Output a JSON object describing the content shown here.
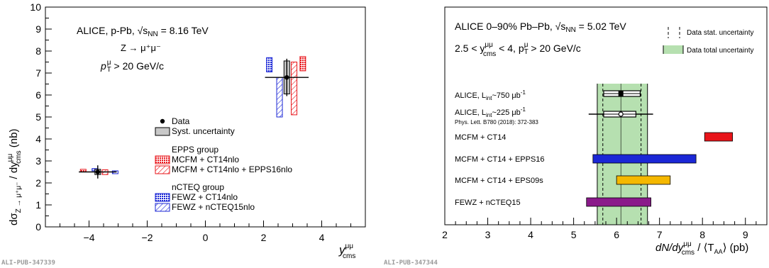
{
  "chart_data": [
    {
      "type": "scatter",
      "ylabel": "dσ_{Z→μ⁺μ⁻} / dy^{μμ}_{cms} (nb)",
      "ylabel_parts": {
        "a": "dσ",
        "sub": "Z → μ⁺μ⁻",
        "b": " / dy",
        "sup2": "μμ",
        "sub2": "cms",
        "c": " (nb)"
      },
      "xlabel_parts": {
        "y": "y",
        "sup": "μμ",
        "sub": "cms"
      },
      "xlim": [
        -5.5,
        5.5
      ],
      "ylim": [
        0,
        10
      ],
      "xticks": [
        -4,
        -2,
        0,
        2,
        4
      ],
      "xtick_labels": [
        "−4",
        "−2",
        "0",
        "2",
        "4"
      ],
      "yticks": [
        0,
        1,
        2,
        3,
        4,
        5,
        6,
        7,
        8,
        9,
        10
      ],
      "ytick_labels": [
        "0",
        "1",
        "2",
        "3",
        "4",
        "5",
        "6",
        "7",
        "8",
        "9",
        "10"
      ],
      "annotations": {
        "line1": "ALICE, p-Pb, √s",
        "line1_sub": "NN",
        "line1_end": " = 8.16 TeV",
        "line2": "Z → μ⁺μ⁻",
        "line3_a": "p",
        "line3_sub": "T",
        "line3_sup": "μ",
        "line3_b": " > 20 GeV/c"
      },
      "legend": {
        "data": "Data",
        "syst": "Syst. uncertainty",
        "epps_header": "EPPS group",
        "epps_1": "MCFM + CT14nlo",
        "epps_2": "MCFM + CT14nlo + EPPS16nlo",
        "ncteq_header": "nCTEQ group",
        "ncteq_1": "FEWZ + CT14nlo",
        "ncteq_2": "FEWZ + nCTEQ15nlo"
      },
      "data_points": [
        {
          "x": -3.7,
          "y": 2.5,
          "stat": 0.3,
          "xerr": 0.65,
          "syst": 0.12
        },
        {
          "x": 2.8,
          "y": 6.8,
          "stat": 0.85,
          "xerr": 0.75,
          "syst": 0.75
        }
      ],
      "model_boxes": [
        {
          "name": "MCFM + CT14nlo",
          "x": -4.2,
          "low": 2.5,
          "high": 2.62
        },
        {
          "name": "MCFM + CT14nlo + EPPS16nlo",
          "x": -3.45,
          "low": 2.38,
          "high": 2.6
        },
        {
          "name": "FEWZ + CT14nlo",
          "x": -3.8,
          "low": 2.55,
          "high": 2.65
        },
        {
          "name": "FEWZ + nCTEQ15nlo",
          "x": -3.1,
          "low": 2.42,
          "high": 2.55
        },
        {
          "name": "FEWZ + CT14nlo",
          "x": 2.2,
          "low": 7.05,
          "high": 7.7
        },
        {
          "name": "FEWZ + nCTEQ15nlo",
          "x": 2.55,
          "low": 5.0,
          "high": 6.8
        },
        {
          "name": "MCFM + CT14nlo + EPPS16nlo",
          "x": 3.05,
          "low": 5.1,
          "high": 7.5
        },
        {
          "name": "MCFM + CT14nlo",
          "x": 3.35,
          "low": 7.1,
          "high": 7.75
        }
      ],
      "footer": "ALI-PUB-347339"
    },
    {
      "type": "bar",
      "xlabel_parts": {
        "a": "dN/dy",
        "sup": "μμ",
        "sub": "cms",
        "b": " / ⟨T",
        "sub2": "AA",
        "c": "⟩ (pb)"
      },
      "xlim": [
        2,
        9.5
      ],
      "xticks": [
        2,
        3,
        4,
        5,
        6,
        7,
        8,
        9
      ],
      "xtick_labels": [
        "2",
        "3",
        "4",
        "5",
        "6",
        "7",
        "8",
        "9"
      ],
      "title_parts": {
        "a": "ALICE 0–90% Pb–Pb, √s",
        "sub": "NN",
        "b": " = 5.02 TeV"
      },
      "subtitle_parts": {
        "a": "2.5 < y",
        "sup": "μμ",
        "sub": "cms",
        "b": " < 4, p",
        "sub2": "T",
        "sup2": "μ",
        "c": " > 20 GeV/c"
      },
      "legend": {
        "stat": "Data stat. uncertainty",
        "total": "Data total uncertainty"
      },
      "data_band": {
        "low": 5.55,
        "high": 6.72,
        "stat_low": 5.68,
        "stat_high": 6.57,
        "center": 6.1
      },
      "measurements": [
        {
          "label_a": "ALICE, L",
          "label_sub": "int",
          "label_b": "~750 μb",
          "label_sup": "-1",
          "center": 6.1,
          "syst_low": 5.7,
          "syst_high": 6.55,
          "err_low": 5.8,
          "err_high": 6.55
        },
        {
          "label_a": "ALICE, L",
          "label_sub": "int",
          "label_b": "~225 μb",
          "label_sup": "-1",
          "label_ref": "Phys. Lett. B780 (2018): 372-383",
          "center": 6.1,
          "syst_low": 5.7,
          "syst_high": 6.45,
          "err_low": 5.35,
          "err_high": 6.85
        }
      ],
      "models": [
        {
          "name": "MCFM + CT14",
          "low": 8.05,
          "high": 8.7,
          "color": "#e8141a"
        },
        {
          "name": "MCFM + CT14 + EPPS16",
          "low": 5.45,
          "high": 7.85,
          "color": "#1b27d6"
        },
        {
          "name": "MCFM + CT14 + EPS09s",
          "low": 6.0,
          "high": 7.25,
          "color": "#f5b800"
        },
        {
          "name": "FEWZ + nCTEQ15",
          "low": 5.3,
          "high": 6.8,
          "color": "#8a1a8a"
        }
      ],
      "footer": "ALI-PUB-347344"
    }
  ],
  "colors": {
    "red": "#e8141a",
    "blue": "#1b27d6",
    "green_band": "#b6e0b0",
    "syst_fill": "#c8c8c8"
  }
}
